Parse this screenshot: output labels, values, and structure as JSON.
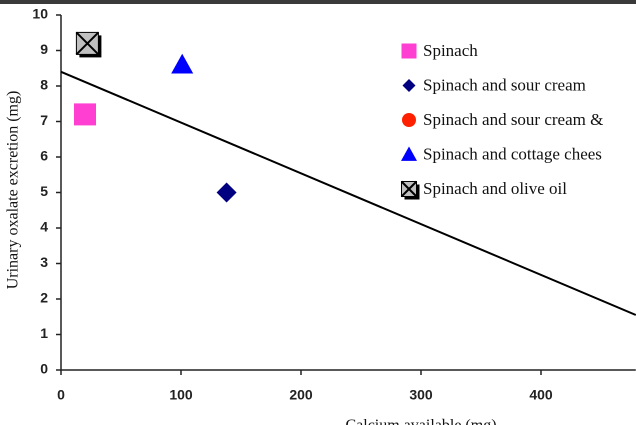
{
  "chart_data": {
    "type": "scatter",
    "xlabel": "Calcium available (mg)",
    "ylabel": "Urinary oxalate excretion (mg)",
    "xlim": [
      0,
      479
    ],
    "ylim": [
      0,
      10
    ],
    "xticks": [
      0,
      100,
      200,
      300,
      400
    ],
    "yticks": [
      0,
      1,
      2,
      3,
      4,
      5,
      6,
      7,
      8,
      9,
      10
    ],
    "series": [
      {
        "name": "Spinach",
        "color": "#ff3fd2",
        "marker": "square",
        "x": [
          20
        ],
        "values": [
          7.2
        ]
      },
      {
        "name": "Spinach and sour cream",
        "color": "#000080",
        "marker": "diamond",
        "x": [
          138
        ],
        "values": [
          5.0
        ]
      },
      {
        "name": "Spinach and sour cream &",
        "color": "#ff2000",
        "marker": "circle",
        "x": [],
        "values": []
      },
      {
        "name": "Spinach and cottage chees",
        "color": "#0000ff",
        "marker": "triangle",
        "x": [
          101
        ],
        "values": [
          8.6
        ]
      },
      {
        "name": "Spinach and olive oil",
        "color": "#c0c0c0",
        "marker": "x-box",
        "x": [
          22
        ],
        "values": [
          9.2
        ]
      }
    ],
    "trendline": {
      "color": "#000000",
      "x": [
        0,
        479
      ],
      "values": [
        8.4,
        1.55
      ]
    }
  }
}
